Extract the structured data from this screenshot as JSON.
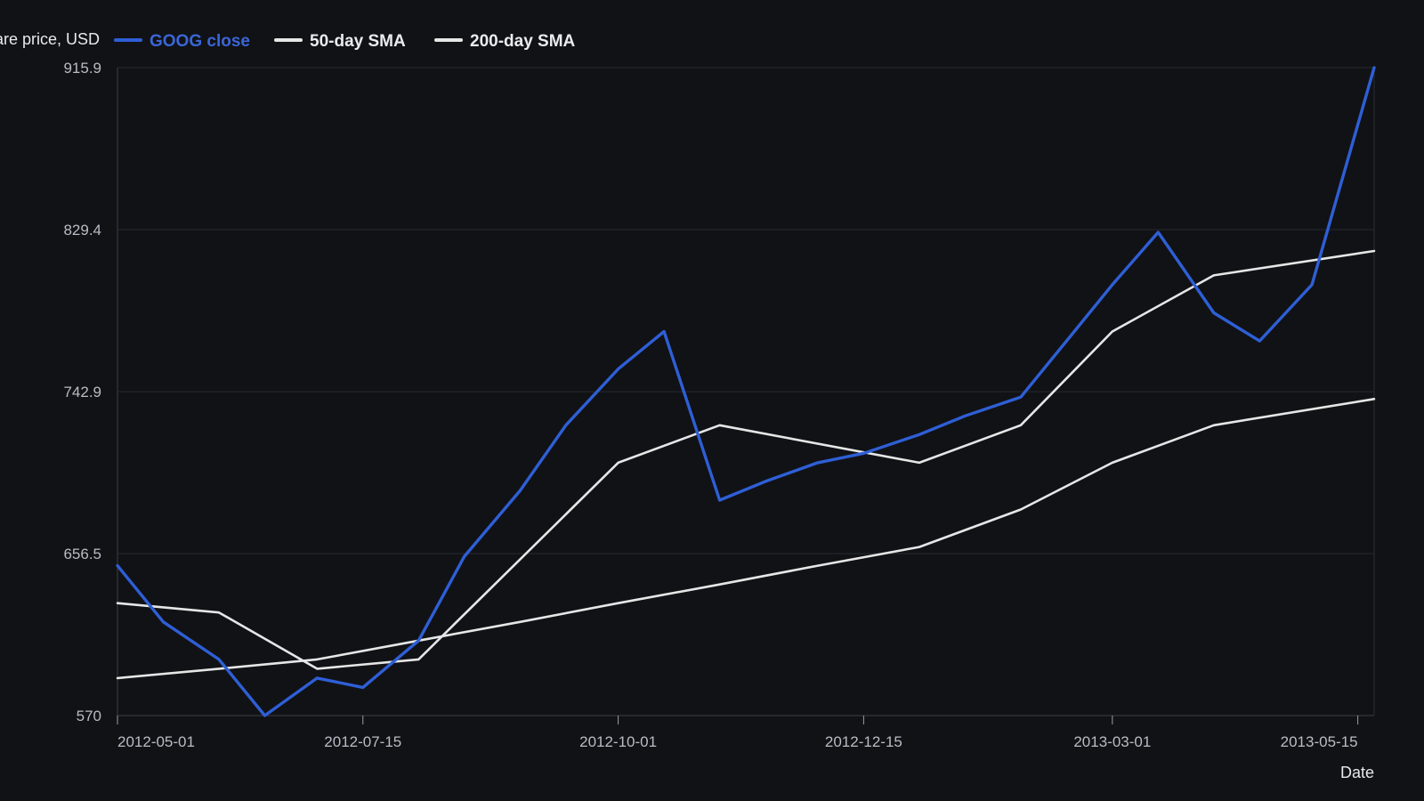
{
  "chart_data": {
    "type": "line",
    "ylabel": "Share price, USD",
    "xlabel": "Date",
    "ylim": [
      570,
      915.9
    ],
    "xlim": [
      "2012-05-01",
      "2013-05-20"
    ],
    "y_ticks": [
      "570",
      "656.5",
      "742.9",
      "829.4",
      "915.9"
    ],
    "x_ticks": [
      "2012-05-01",
      "2012-07-15",
      "2012-10-01",
      "2012-12-15",
      "2013-03-01",
      "2013-05-15"
    ],
    "grid": "horizontal",
    "legend_position": "top-left",
    "background": "#111216",
    "series": [
      {
        "name": "GOOG close",
        "color": "#2e5fd6",
        "x": [
          "2012-05-01",
          "2012-05-15",
          "2012-06-01",
          "2012-06-15",
          "2012-07-01",
          "2012-07-15",
          "2012-08-01",
          "2012-08-15",
          "2012-09-01",
          "2012-09-15",
          "2012-10-01",
          "2012-10-15",
          "2012-11-01",
          "2012-11-15",
          "2012-12-01",
          "2012-12-15",
          "2013-01-01",
          "2013-01-15",
          "2013-02-01",
          "2013-02-15",
          "2013-03-01",
          "2013-03-15",
          "2013-04-01",
          "2013-04-15",
          "2013-05-01",
          "2013-05-20"
        ],
        "y": [
          650,
          620,
          600,
          570,
          590,
          585,
          610,
          655,
          690,
          725,
          755,
          775,
          685,
          695,
          705,
          710,
          720,
          730,
          740,
          770,
          800,
          828,
          785,
          770,
          800,
          915.9
        ]
      },
      {
        "name": "50-day SMA",
        "color": "#e6e6e6",
        "x": [
          "2012-05-01",
          "2012-06-01",
          "2012-07-01",
          "2012-08-01",
          "2012-10-01",
          "2012-11-01",
          "2013-01-01",
          "2013-02-01",
          "2013-03-01",
          "2013-04-01",
          "2013-05-20"
        ],
        "y": [
          630,
          625,
          595,
          600,
          705,
          725,
          705,
          725,
          775,
          805,
          818
        ]
      },
      {
        "name": "200-day SMA",
        "color": "#e6e6e6",
        "x": [
          "2012-05-01",
          "2012-06-01",
          "2012-07-01",
          "2012-08-01",
          "2012-09-01",
          "2012-10-01",
          "2012-11-01",
          "2012-12-01",
          "2013-01-01",
          "2013-02-01",
          "2013-03-01",
          "2013-04-01",
          "2013-05-20"
        ],
        "y": [
          590,
          595,
          600,
          610,
          620,
          630,
          640,
          650,
          660,
          680,
          705,
          725,
          739
        ]
      }
    ]
  }
}
